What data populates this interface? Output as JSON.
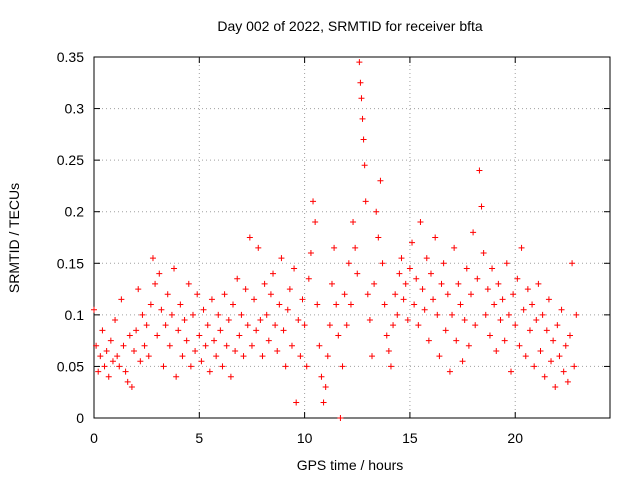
{
  "chart_data": {
    "type": "scatter",
    "title": "Day 002 of 2022, SRMTID for receiver bfta",
    "xlabel": "GPS time / hours",
    "ylabel": "SRMTID / TECUs",
    "xlim": [
      0,
      24.5
    ],
    "ylim": [
      0,
      0.35
    ],
    "xticks": [
      0,
      5,
      10,
      15,
      20
    ],
    "xtick_labels": [
      "0",
      "5",
      "10",
      "15",
      "20"
    ],
    "yticks": [
      0,
      0.05,
      0.1,
      0.15,
      0.2,
      0.25,
      0.3,
      0.35
    ],
    "ytick_labels": [
      "0",
      "0.05",
      "0.1",
      "0.15",
      "0.2",
      "0.25",
      "0.3",
      "0.35"
    ],
    "grid": true,
    "marker": "plus",
    "color": "#ff0000",
    "series": [
      {
        "name": "bfta",
        "points": [
          [
            0.0,
            0.105
          ],
          [
            0.1,
            0.07
          ],
          [
            0.2,
            0.045
          ],
          [
            0.3,
            0.06
          ],
          [
            0.4,
            0.085
          ],
          [
            0.5,
            0.05
          ],
          [
            0.6,
            0.065
          ],
          [
            0.7,
            0.04
          ],
          [
            0.8,
            0.075
          ],
          [
            0.9,
            0.055
          ],
          [
            1.0,
            0.095
          ],
          [
            1.1,
            0.06
          ],
          [
            1.2,
            0.05
          ],
          [
            1.3,
            0.115
          ],
          [
            1.4,
            0.07
          ],
          [
            1.5,
            0.045
          ],
          [
            1.6,
            0.035
          ],
          [
            1.7,
            0.08
          ],
          [
            1.8,
            0.03
          ],
          [
            1.9,
            0.065
          ],
          [
            2.0,
            0.085
          ],
          [
            2.1,
            0.125
          ],
          [
            2.2,
            0.055
          ],
          [
            2.3,
            0.1
          ],
          [
            2.4,
            0.07
          ],
          [
            2.5,
            0.09
          ],
          [
            2.6,
            0.06
          ],
          [
            2.7,
            0.11
          ],
          [
            2.8,
            0.155
          ],
          [
            2.9,
            0.13
          ],
          [
            3.0,
            0.08
          ],
          [
            3.1,
            0.14
          ],
          [
            3.2,
            0.105
          ],
          [
            3.3,
            0.05
          ],
          [
            3.4,
            0.09
          ],
          [
            3.5,
            0.12
          ],
          [
            3.6,
            0.07
          ],
          [
            3.7,
            0.1
          ],
          [
            3.8,
            0.145
          ],
          [
            3.9,
            0.04
          ],
          [
            4.0,
            0.085
          ],
          [
            4.1,
            0.11
          ],
          [
            4.2,
            0.06
          ],
          [
            4.3,
            0.095
          ],
          [
            4.4,
            0.075
          ],
          [
            4.5,
            0.13
          ],
          [
            4.6,
            0.05
          ],
          [
            4.7,
            0.1
          ],
          [
            4.8,
            0.065
          ],
          [
            4.9,
            0.12
          ],
          [
            5.0,
            0.08
          ],
          [
            5.1,
            0.055
          ],
          [
            5.2,
            0.105
          ],
          [
            5.3,
            0.07
          ],
          [
            5.4,
            0.09
          ],
          [
            5.5,
            0.045
          ],
          [
            5.6,
            0.115
          ],
          [
            5.7,
            0.075
          ],
          [
            5.8,
            0.06
          ],
          [
            5.9,
            0.1
          ],
          [
            6.0,
            0.085
          ],
          [
            6.1,
            0.05
          ],
          [
            6.2,
            0.12
          ],
          [
            6.3,
            0.07
          ],
          [
            6.4,
            0.095
          ],
          [
            6.5,
            0.04
          ],
          [
            6.6,
            0.11
          ],
          [
            6.7,
            0.065
          ],
          [
            6.8,
            0.135
          ],
          [
            6.9,
            0.08
          ],
          [
            7.0,
            0.1
          ],
          [
            7.1,
            0.06
          ],
          [
            7.2,
            0.125
          ],
          [
            7.3,
            0.09
          ],
          [
            7.4,
            0.175
          ],
          [
            7.5,
            0.07
          ],
          [
            7.6,
            0.115
          ],
          [
            7.7,
            0.085
          ],
          [
            7.8,
            0.165
          ],
          [
            7.9,
            0.095
          ],
          [
            8.0,
            0.06
          ],
          [
            8.1,
            0.13
          ],
          [
            8.2,
            0.1
          ],
          [
            8.3,
            0.075
          ],
          [
            8.4,
            0.12
          ],
          [
            8.5,
            0.14
          ],
          [
            8.6,
            0.09
          ],
          [
            8.7,
            0.065
          ],
          [
            8.8,
            0.11
          ],
          [
            8.9,
            0.155
          ],
          [
            9.0,
            0.085
          ],
          [
            9.1,
            0.05
          ],
          [
            9.2,
            0.105
          ],
          [
            9.3,
            0.125
          ],
          [
            9.4,
            0.07
          ],
          [
            9.5,
            0.145
          ],
          [
            9.6,
            0.015
          ],
          [
            9.7,
            0.095
          ],
          [
            9.8,
            0.06
          ],
          [
            9.9,
            0.115
          ],
          [
            10.0,
            0.09
          ],
          [
            10.1,
            0.05
          ],
          [
            10.2,
            0.135
          ],
          [
            10.3,
            0.16
          ],
          [
            10.4,
            0.21
          ],
          [
            10.5,
            0.19
          ],
          [
            10.6,
            0.11
          ],
          [
            10.7,
            0.07
          ],
          [
            10.8,
            0.04
          ],
          [
            10.9,
            0.015
          ],
          [
            11.0,
            0.03
          ],
          [
            11.1,
            0.06
          ],
          [
            11.2,
            0.09
          ],
          [
            11.3,
            0.13
          ],
          [
            11.4,
            0.165
          ],
          [
            11.5,
            0.11
          ],
          [
            11.6,
            0.08
          ],
          [
            11.7,
            0.0
          ],
          [
            11.8,
            0.05
          ],
          [
            11.9,
            0.12
          ],
          [
            12.0,
            0.09
          ],
          [
            12.1,
            0.15
          ],
          [
            12.2,
            0.11
          ],
          [
            12.3,
            0.19
          ],
          [
            12.4,
            0.165
          ],
          [
            12.5,
            0.14
          ],
          [
            12.6,
            0.345
          ],
          [
            12.65,
            0.325
          ],
          [
            12.7,
            0.31
          ],
          [
            12.75,
            0.29
          ],
          [
            12.8,
            0.27
          ],
          [
            12.85,
            0.245
          ],
          [
            12.9,
            0.21
          ],
          [
            13.0,
            0.12
          ],
          [
            13.1,
            0.095
          ],
          [
            13.2,
            0.06
          ],
          [
            13.3,
            0.13
          ],
          [
            13.4,
            0.2
          ],
          [
            13.5,
            0.175
          ],
          [
            13.6,
            0.23
          ],
          [
            13.7,
            0.15
          ],
          [
            13.8,
            0.11
          ],
          [
            13.9,
            0.08
          ],
          [
            14.0,
            0.065
          ],
          [
            14.1,
            0.05
          ],
          [
            14.2,
            0.09
          ],
          [
            14.3,
            0.12
          ],
          [
            14.4,
            0.1
          ],
          [
            14.5,
            0.14
          ],
          [
            14.6,
            0.155
          ],
          [
            14.7,
            0.115
          ],
          [
            14.8,
            0.13
          ],
          [
            14.9,
            0.095
          ],
          [
            15.0,
            0.145
          ],
          [
            15.1,
            0.17
          ],
          [
            15.2,
            0.11
          ],
          [
            15.3,
            0.135
          ],
          [
            15.4,
            0.09
          ],
          [
            15.5,
            0.19
          ],
          [
            15.6,
            0.125
          ],
          [
            15.7,
            0.105
          ],
          [
            15.8,
            0.155
          ],
          [
            15.9,
            0.075
          ],
          [
            16.0,
            0.14
          ],
          [
            16.1,
            0.115
          ],
          [
            16.2,
            0.175
          ],
          [
            16.3,
            0.1
          ],
          [
            16.4,
            0.06
          ],
          [
            16.5,
            0.13
          ],
          [
            16.6,
            0.15
          ],
          [
            16.7,
            0.085
          ],
          [
            16.8,
            0.12
          ],
          [
            16.9,
            0.045
          ],
          [
            17.0,
            0.1
          ],
          [
            17.1,
            0.165
          ],
          [
            17.2,
            0.075
          ],
          [
            17.3,
            0.13
          ],
          [
            17.4,
            0.11
          ],
          [
            17.5,
            0.055
          ],
          [
            17.6,
            0.095
          ],
          [
            17.7,
            0.145
          ],
          [
            17.8,
            0.07
          ],
          [
            17.9,
            0.12
          ],
          [
            18.0,
            0.18
          ],
          [
            18.1,
            0.09
          ],
          [
            18.2,
            0.135
          ],
          [
            18.3,
            0.24
          ],
          [
            18.4,
            0.205
          ],
          [
            18.5,
            0.16
          ],
          [
            18.6,
            0.1
          ],
          [
            18.7,
            0.125
          ],
          [
            18.8,
            0.08
          ],
          [
            18.9,
            0.145
          ],
          [
            19.0,
            0.11
          ],
          [
            19.1,
            0.065
          ],
          [
            19.2,
            0.13
          ],
          [
            19.3,
            0.095
          ],
          [
            19.4,
            0.115
          ],
          [
            19.5,
            0.075
          ],
          [
            19.6,
            0.15
          ],
          [
            19.7,
            0.1
          ],
          [
            19.8,
            0.045
          ],
          [
            19.9,
            0.12
          ],
          [
            20.0,
            0.09
          ],
          [
            20.1,
            0.135
          ],
          [
            20.2,
            0.07
          ],
          [
            20.3,
            0.165
          ],
          [
            20.4,
            0.105
          ],
          [
            20.5,
            0.06
          ],
          [
            20.6,
            0.125
          ],
          [
            20.7,
            0.085
          ],
          [
            20.8,
            0.11
          ],
          [
            20.9,
            0.05
          ],
          [
            21.0,
            0.095
          ],
          [
            21.1,
            0.13
          ],
          [
            21.2,
            0.065
          ],
          [
            21.3,
            0.1
          ],
          [
            21.4,
            0.04
          ],
          [
            21.5,
            0.085
          ],
          [
            21.6,
            0.115
          ],
          [
            21.7,
            0.055
          ],
          [
            21.8,
            0.075
          ],
          [
            21.9,
            0.03
          ],
          [
            22.0,
            0.09
          ],
          [
            22.1,
            0.06
          ],
          [
            22.2,
            0.105
          ],
          [
            22.3,
            0.045
          ],
          [
            22.4,
            0.07
          ],
          [
            22.5,
            0.035
          ],
          [
            22.6,
            0.08
          ],
          [
            22.7,
            0.15
          ],
          [
            22.8,
            0.05
          ],
          [
            22.9,
            0.1
          ]
        ]
      }
    ]
  }
}
